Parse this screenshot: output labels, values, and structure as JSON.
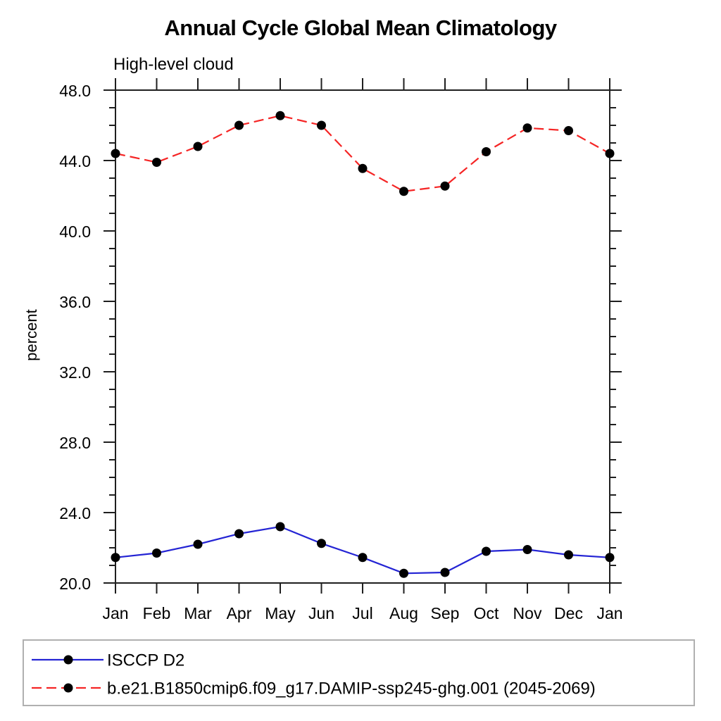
{
  "chart": {
    "title": "Annual Cycle Global Mean Climatology",
    "subtitle": "High-level cloud",
    "ylabel": "percent"
  },
  "style": {
    "axis_color": "#1f1f1f",
    "legend_border_color": "#b0b0b0",
    "marker_color": "#000000",
    "background": "#ffffff"
  },
  "chart_data": {
    "type": "line",
    "title": "Annual Cycle Global Mean Climatology",
    "subtitle": "High-level cloud",
    "xlabel": "",
    "ylabel": "percent",
    "x_tick_labels": [
      "Jan",
      "Feb",
      "Mar",
      "Apr",
      "May",
      "Jun",
      "Jul",
      "Aug",
      "Sep",
      "Oct",
      "Nov",
      "Dec",
      "Jan"
    ],
    "ylim": [
      20.0,
      48.0
    ],
    "y_major_ticks": [
      20.0,
      24.0,
      28.0,
      32.0,
      36.0,
      40.0,
      44.0,
      48.0
    ],
    "y_minor_step": 1.0,
    "y_tick_decimals": 1,
    "grid": false,
    "legend_position": "bottom-left-box",
    "marker": "filled-circle",
    "series": [
      {
        "name": "ISCCP D2",
        "color": "#2424d4",
        "line_style": "solid",
        "values": [
          21.45,
          21.7,
          22.2,
          22.8,
          23.2,
          22.25,
          21.45,
          20.55,
          20.6,
          21.8,
          21.9,
          21.6,
          21.45
        ]
      },
      {
        "name": "b.e21.B1850cmip6.f09_g17.DAMIP-ssp245-ghg.001 (2045-2069)",
        "color": "#f52525",
        "line_style": "dashed",
        "values": [
          44.4,
          43.9,
          44.8,
          46.0,
          46.55,
          46.0,
          43.55,
          42.25,
          42.55,
          44.5,
          45.85,
          45.7,
          44.4
        ]
      }
    ]
  }
}
